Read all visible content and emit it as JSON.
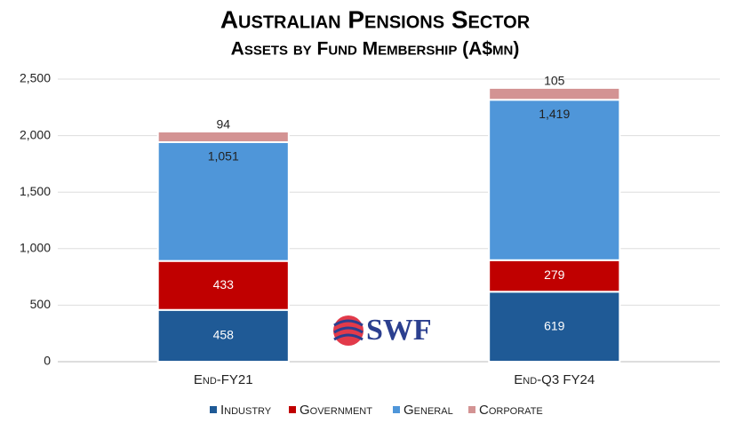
{
  "chart_data": {
    "type": "stacked-bar",
    "title": "Australian Pensions Sector",
    "subtitle": "Assets by Fund Membership (A$mn)",
    "categories": [
      "End-FY21",
      "End-Q3 FY24"
    ],
    "series": [
      {
        "name": "Industry",
        "color": "#1f5a96",
        "values": [
          458,
          619
        ]
      },
      {
        "name": "Government",
        "color": "#c00000",
        "values": [
          433,
          279
        ]
      },
      {
        "name": "General",
        "color": "#4f96d9",
        "values": [
          1051,
          1419
        ],
        "value_labels": [
          "1,051",
          "1,419"
        ]
      },
      {
        "name": "Corporate",
        "color": "#d39393",
        "values": [
          94,
          105
        ]
      }
    ],
    "ylim": [
      0,
      2500
    ],
    "yticks": [
      0,
      500,
      {
        "value": 1000,
        "label": "1,000"
      },
      {
        "value": 1500,
        "label": "1,500"
      },
      {
        "value": 2000,
        "label": "2,000"
      },
      {
        "value": 2500,
        "label": "2,500"
      }
    ],
    "grid": true,
    "legend": "bottom",
    "logo": "SWF"
  }
}
